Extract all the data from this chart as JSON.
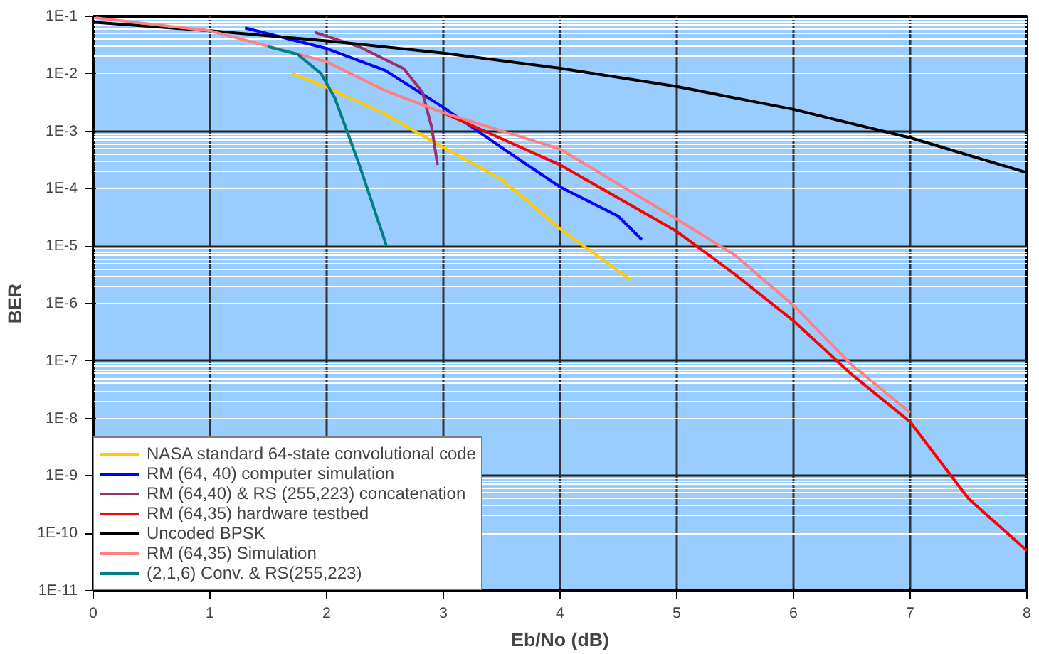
{
  "chart_data": {
    "type": "line",
    "xlabel": "Eb/No (dB)",
    "ylabel": "BER",
    "log": "y",
    "grid": true,
    "legend": "bottom left",
    "marker": "none",
    "line_style": "solid",
    "xlim": [
      0,
      8
    ],
    "xticks": [
      0,
      1,
      2,
      3,
      4,
      5,
      6,
      7,
      8
    ],
    "ylim": [
      1e-11,
      0.1
    ],
    "yticks": [
      {
        "value": 0.1,
        "label": "1E-1"
      },
      {
        "value": 0.01,
        "label": "1E-2"
      },
      {
        "value": 0.001,
        "label": "1E-3"
      },
      {
        "value": 0.0001,
        "label": "1E-4"
      },
      {
        "value": 1e-05,
        "label": "1E-5"
      },
      {
        "value": 1e-06,
        "label": "1E-6"
      },
      {
        "value": 1e-07,
        "label": "1E-7"
      },
      {
        "value": 1e-08,
        "label": "1E-8"
      },
      {
        "value": 1e-09,
        "label": "1E-9"
      },
      {
        "value": 1e-10,
        "label": "1E-10"
      },
      {
        "value": 1e-11,
        "label": "1E-11"
      }
    ],
    "series": [
      {
        "name": "NASA standard 64-state convolutional code",
        "color": "#ffcc00",
        "x": [
          1.7,
          2,
          2.5,
          3,
          3.5,
          4,
          4.6
        ],
        "values": [
          0.0102,
          0.0058,
          0.002,
          0.00052,
          0.000145,
          2e-05,
          2.6e-06
        ]
      },
      {
        "name": "RM (64, 40) computer simulation",
        "color": "#0000ff",
        "x": [
          1.3,
          2,
          2.5,
          3,
          3.5,
          4,
          4.5,
          4.7
        ],
        "values": [
          0.063,
          0.0275,
          0.0115,
          0.0026,
          0.00052,
          0.000107,
          3.3e-05,
          1.3e-05
        ]
      },
      {
        "name": "RM (64,40) & RS (255,223) concatenation",
        "color": "#993366",
        "x": [
          1.9,
          2.28,
          2.66,
          2.82,
          2.9,
          2.95
        ],
        "values": [
          0.0525,
          0.0295,
          0.0123,
          0.0048,
          0.00117,
          0.00026
        ]
      },
      {
        "name": "RM (64,35) hardware testbed",
        "color": "#ff0000",
        "x": [
          3,
          4,
          5,
          5.5,
          6,
          6.5,
          7,
          7.5,
          8
        ],
        "values": [
          0.0021,
          0.00026,
          1.8e-05,
          3.2e-06,
          5e-07,
          5.8e-08,
          8.7e-09,
          4e-10,
          5e-11
        ]
      },
      {
        "name": "Uncoded BPSK",
        "color": "#000000",
        "x": [
          0,
          1,
          2,
          3,
          4,
          5,
          6,
          7,
          8
        ],
        "values": [
          0.079,
          0.056,
          0.0375,
          0.0229,
          0.0125,
          0.006,
          0.0024,
          0.00077,
          0.00019
        ]
      },
      {
        "name": "RM (64,35) Simulation",
        "color": "#ff8080",
        "x": [
          0,
          1,
          2,
          2.5,
          3,
          4,
          5,
          5.5,
          6,
          6.5,
          7
        ],
        "values": [
          0.095,
          0.056,
          0.0162,
          0.0051,
          0.0021,
          0.00049,
          2.95e-05,
          6.9e-06,
          9.3e-07,
          8.5e-08,
          1.26e-08
        ]
      },
      {
        "name": "(2,1,6) Conv. & RS(255,223)",
        "color": "#008080",
        "x": [
          1.5,
          1.75,
          1.95,
          2.07,
          2.28,
          2.51
        ],
        "values": [
          0.0295,
          0.0219,
          0.0102,
          0.0038,
          0.00026,
          1.05e-05
        ]
      }
    ]
  }
}
